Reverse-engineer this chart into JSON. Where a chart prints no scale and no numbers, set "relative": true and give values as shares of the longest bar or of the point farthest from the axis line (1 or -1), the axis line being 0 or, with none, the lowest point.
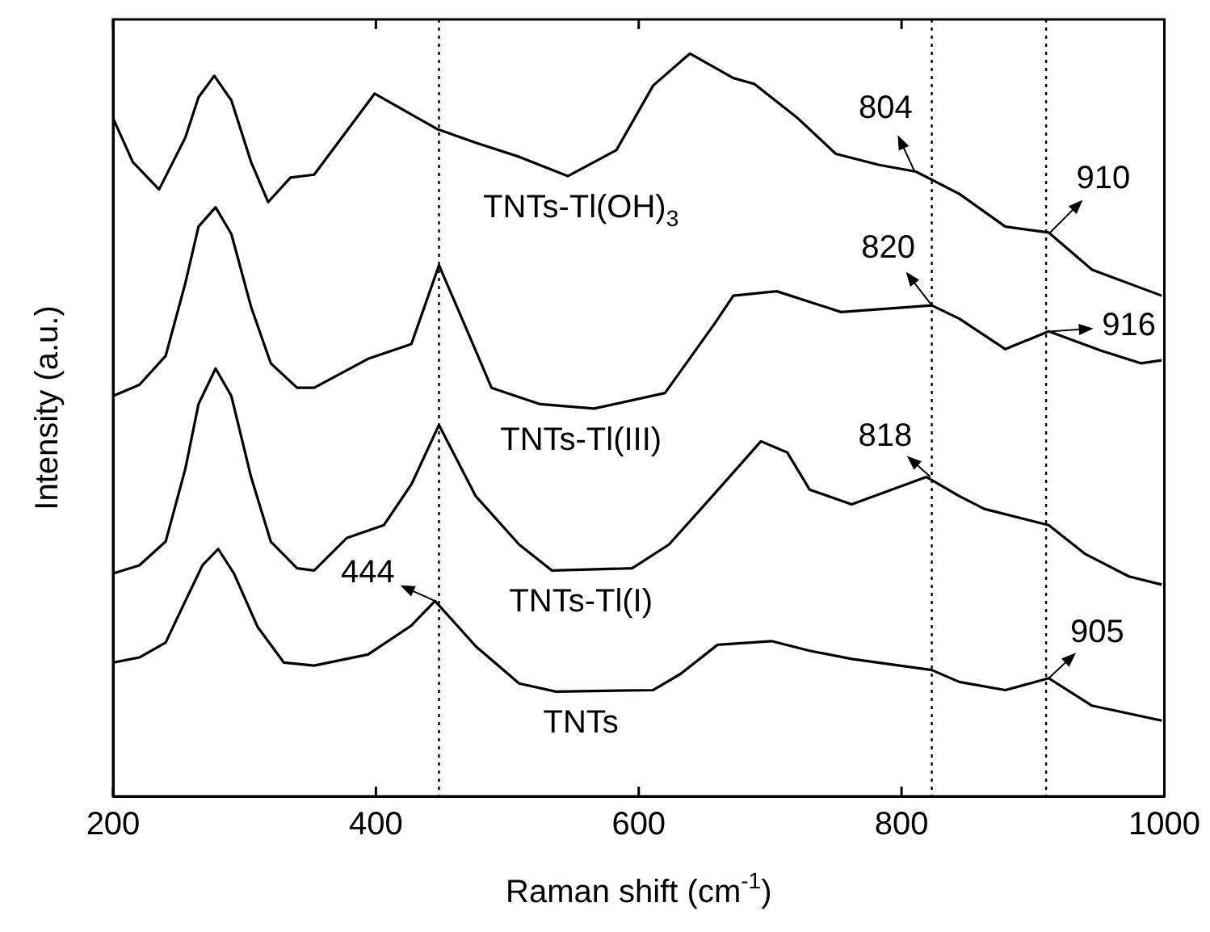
{
  "chart_data": {
    "type": "line",
    "xlabel": "Raman shift (cm$^{-1}$)",
    "ylabel": "Intensity (a.u.)",
    "xlim": [
      200,
      1000
    ],
    "xticks": [
      200,
      400,
      600,
      800,
      1000
    ],
    "relative": true,
    "marker": "none",
    "line_style": "solid",
    "grid": false,
    "series": [
      {
        "name": "TNTs-Tl(OH)$_{3}$",
        "color": "#000000",
        "x": [
          200,
          215,
          235,
          255,
          265,
          277,
          290,
          305,
          318,
          335,
          353,
          399,
          447,
          476,
          509,
          546,
          583,
          611,
          639,
          672,
          688,
          721,
          750,
          783,
          811,
          844,
          879,
          912,
          945,
          998
        ],
        "values": [
          0.913,
          0.854,
          0.817,
          0.887,
          0.941,
          0.97,
          0.937,
          0.854,
          0.8,
          0.833,
          0.837,
          0.946,
          0.898,
          0.88,
          0.861,
          0.835,
          0.87,
          0.957,
          1,
          0.967,
          0.959,
          0.913,
          0.865,
          0.85,
          0.841,
          0.811,
          0.767,
          0.759,
          0.709,
          0.674
        ]
      },
      {
        "name": "TNTs-Tl(III)",
        "color": "#000000",
        "x": [
          200,
          220,
          240,
          255,
          265,
          278,
          290,
          305,
          320,
          340,
          353,
          394,
          427,
          448,
          467,
          488,
          525,
          566,
          620,
          658,
          672,
          705,
          754,
          823,
          844,
          879,
          912,
          952,
          982,
          998
        ],
        "values": [
          0.539,
          0.554,
          0.593,
          0.691,
          0.767,
          0.793,
          0.757,
          0.659,
          0.583,
          0.55,
          0.55,
          0.589,
          0.609,
          0.715,
          0.637,
          0.55,
          0.528,
          0.522,
          0.543,
          0.637,
          0.674,
          0.68,
          0.652,
          0.661,
          0.643,
          0.602,
          0.626,
          0.6,
          0.583,
          0.587
        ]
      },
      {
        "name": "TNTs-Tl(I)",
        "color": "#000000",
        "x": [
          200,
          220,
          240,
          255,
          265,
          278,
          290,
          305,
          320,
          340,
          353,
          378,
          406,
          427,
          448,
          476,
          509,
          534,
          595,
          623,
          656,
          693,
          713,
          730,
          762,
          819,
          844,
          863,
          912,
          940,
          973,
          998
        ],
        "values": [
          0.3,
          0.311,
          0.343,
          0.441,
          0.528,
          0.576,
          0.539,
          0.43,
          0.343,
          0.307,
          0.304,
          0.348,
          0.365,
          0.42,
          0.5,
          0.404,
          0.339,
          0.304,
          0.307,
          0.339,
          0.404,
          0.478,
          0.463,
          0.413,
          0.393,
          0.43,
          0.404,
          0.387,
          0.365,
          0.326,
          0.296,
          0.285
        ]
      },
      {
        "name": "TNTs",
        "color": "#000000",
        "x": [
          200,
          220,
          240,
          255,
          268,
          280,
          292,
          310,
          330,
          353,
          394,
          427,
          445,
          476,
          509,
          537,
          611,
          632,
          660,
          701,
          730,
          762,
          823,
          844,
          879,
          912,
          945,
          998
        ],
        "values": [
          0.18,
          0.187,
          0.207,
          0.263,
          0.311,
          0.333,
          0.3,
          0.228,
          0.18,
          0.176,
          0.191,
          0.23,
          0.263,
          0.202,
          0.152,
          0.141,
          0.143,
          0.165,
          0.204,
          0.209,
          0.196,
          0.185,
          0.17,
          0.154,
          0.143,
          0.159,
          0.122,
          0.102
        ]
      }
    ],
    "ref_lines": [
      {
        "axis": "x",
        "value": 448,
        "color": "#000000",
        "line_style": "dotted"
      },
      {
        "axis": "x",
        "value": 823,
        "color": "#000000",
        "line_style": "dotted"
      },
      {
        "axis": "x",
        "value": 910,
        "color": "#000000",
        "line_style": "dotted"
      }
    ],
    "annotations": [
      {
        "text": "444",
        "x": 445,
        "y": 0.263
      },
      {
        "text": "804",
        "x": 810,
        "y": 0.841
      },
      {
        "text": "910",
        "x": 913,
        "y": 0.759
      },
      {
        "text": "820",
        "x": 823,
        "y": 0.661
      },
      {
        "text": "916",
        "x": 914,
        "y": 0.626
      },
      {
        "text": "818",
        "x": 822,
        "y": 0.43
      },
      {
        "text": "905",
        "x": 912,
        "y": 0.159
      }
    ]
  }
}
